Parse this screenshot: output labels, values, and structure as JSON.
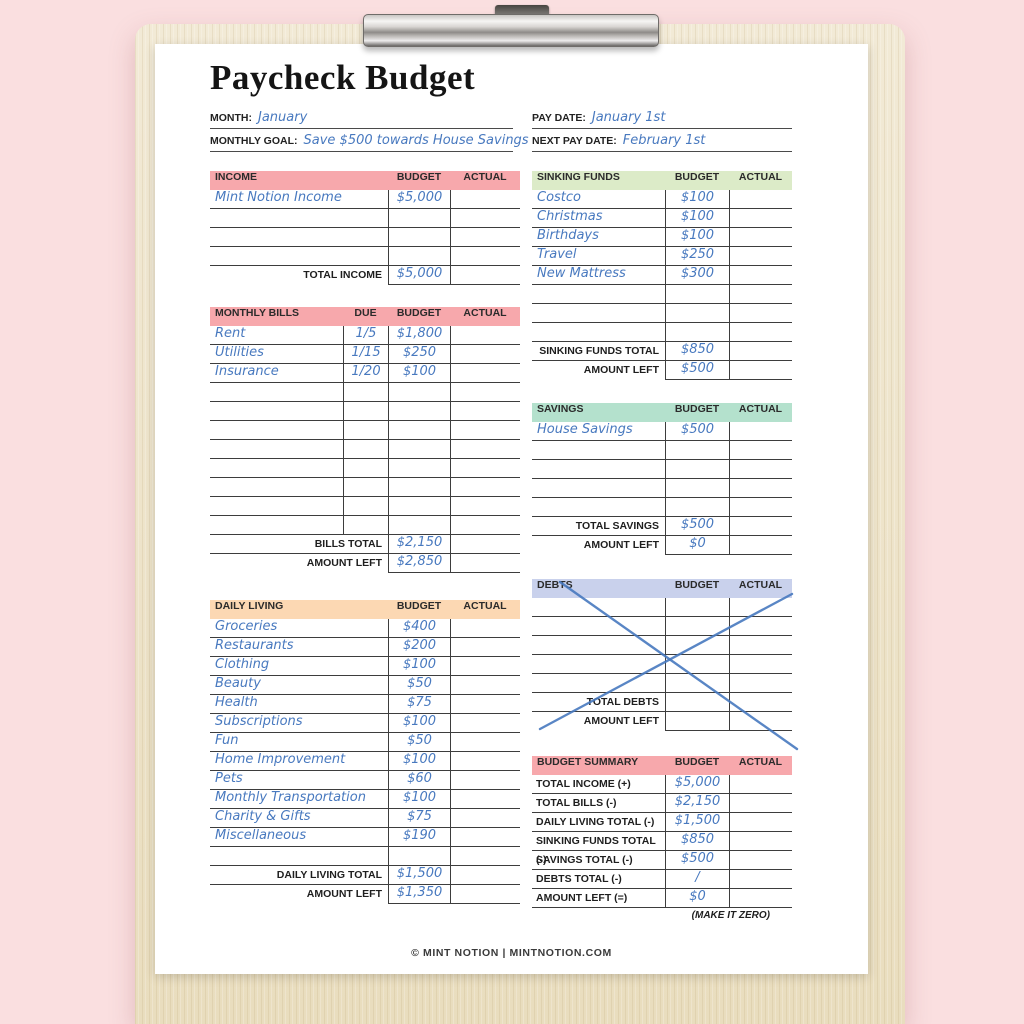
{
  "page": {
    "title": "Paycheck Budget",
    "footer": "© MINT NOTION | MINTNOTION.COM",
    "make_it_zero_note": "(MAKE IT ZERO)"
  },
  "ink_color": "#4879bf",
  "meta": {
    "month": {
      "label": "MONTH:",
      "value": "January"
    },
    "monthly_goal": {
      "label": "MONTHLY GOAL:",
      "value": "Save $500 towards House Savings"
    },
    "pay_date": {
      "label": "PAY DATE:",
      "value": "January 1st"
    },
    "next_pay_date": {
      "label": "NEXT PAY DATE:",
      "value": "February 1st"
    }
  },
  "sections": {
    "income": {
      "title": "INCOME",
      "header_color": "#f7a8ac",
      "columns": {
        "budget": "BUDGET",
        "actual": "ACTUAL"
      },
      "rows": [
        {
          "name": "Mint Notion Income",
          "budget": "$5,000",
          "actual": ""
        },
        {
          "name": "",
          "budget": "",
          "actual": ""
        },
        {
          "name": "",
          "budget": "",
          "actual": ""
        },
        {
          "name": "",
          "budget": "",
          "actual": ""
        }
      ],
      "totals": [
        {
          "label": "TOTAL INCOME",
          "budget": "$5,000",
          "actual": ""
        }
      ]
    },
    "monthly_bills": {
      "title": "MONTHLY BILLS",
      "header_color": "#f7a8ac",
      "columns": {
        "due": "DUE",
        "budget": "BUDGET",
        "actual": "ACTUAL"
      },
      "rows": [
        {
          "name": "Rent",
          "due": "1/5",
          "budget": "$1,800",
          "actual": ""
        },
        {
          "name": "Utilities",
          "due": "1/15",
          "budget": "$250",
          "actual": ""
        },
        {
          "name": "Insurance",
          "due": "1/20",
          "budget": "$100",
          "actual": ""
        },
        {
          "name": "",
          "due": "",
          "budget": "",
          "actual": ""
        },
        {
          "name": "",
          "due": "",
          "budget": "",
          "actual": ""
        },
        {
          "name": "",
          "due": "",
          "budget": "",
          "actual": ""
        },
        {
          "name": "",
          "due": "",
          "budget": "",
          "actual": ""
        },
        {
          "name": "",
          "due": "",
          "budget": "",
          "actual": ""
        },
        {
          "name": "",
          "due": "",
          "budget": "",
          "actual": ""
        },
        {
          "name": "",
          "due": "",
          "budget": "",
          "actual": ""
        },
        {
          "name": "",
          "due": "",
          "budget": "",
          "actual": ""
        }
      ],
      "totals": [
        {
          "label": "BILLS TOTAL",
          "budget": "$2,150",
          "actual": ""
        },
        {
          "label": "AMOUNT LEFT",
          "budget": "$2,850",
          "actual": ""
        }
      ]
    },
    "daily_living": {
      "title": "DAILY LIVING",
      "header_color": "#fcd8b3",
      "columns": {
        "budget": "BUDGET",
        "actual": "ACTUAL"
      },
      "rows": [
        {
          "name": "Groceries",
          "budget": "$400",
          "actual": ""
        },
        {
          "name": "Restaurants",
          "budget": "$200",
          "actual": ""
        },
        {
          "name": "Clothing",
          "budget": "$100",
          "actual": ""
        },
        {
          "name": "Beauty",
          "budget": "$50",
          "actual": ""
        },
        {
          "name": "Health",
          "budget": "$75",
          "actual": ""
        },
        {
          "name": "Subscriptions",
          "budget": "$100",
          "actual": ""
        },
        {
          "name": "Fun",
          "budget": "$50",
          "actual": ""
        },
        {
          "name": "Home Improvement",
          "budget": "$100",
          "actual": ""
        },
        {
          "name": "Pets",
          "budget": "$60",
          "actual": ""
        },
        {
          "name": "Monthly Transportation",
          "budget": "$100",
          "actual": ""
        },
        {
          "name": "Charity & Gifts",
          "budget": "$75",
          "actual": ""
        },
        {
          "name": "Miscellaneous",
          "budget": "$190",
          "actual": ""
        },
        {
          "name": "",
          "budget": "",
          "actual": ""
        }
      ],
      "totals": [
        {
          "label": "DAILY LIVING TOTAL",
          "budget": "$1,500",
          "actual": ""
        },
        {
          "label": "AMOUNT LEFT",
          "budget": "$1,350",
          "actual": ""
        }
      ]
    },
    "sinking_funds": {
      "title": "SINKING FUNDS",
      "header_color": "#dcebc8",
      "columns": {
        "budget": "BUDGET",
        "actual": "ACTUAL"
      },
      "rows": [
        {
          "name": "Costco",
          "budget": "$100",
          "actual": ""
        },
        {
          "name": "Christmas",
          "budget": "$100",
          "actual": ""
        },
        {
          "name": "Birthdays",
          "budget": "$100",
          "actual": ""
        },
        {
          "name": "Travel",
          "budget": "$250",
          "actual": ""
        },
        {
          "name": "New Mattress",
          "budget": "$300",
          "actual": ""
        },
        {
          "name": "",
          "budget": "",
          "actual": ""
        },
        {
          "name": "",
          "budget": "",
          "actual": ""
        },
        {
          "name": "",
          "budget": "",
          "actual": ""
        }
      ],
      "totals": [
        {
          "label": "SINKING FUNDS TOTAL",
          "budget": "$850",
          "actual": ""
        },
        {
          "label": "AMOUNT LEFT",
          "budget": "$500",
          "actual": ""
        }
      ]
    },
    "savings": {
      "title": "SAVINGS",
      "header_color": "#b4e1cd",
      "columns": {
        "budget": "BUDGET",
        "actual": "ACTUAL"
      },
      "rows": [
        {
          "name": "House Savings",
          "budget": "$500",
          "actual": ""
        },
        {
          "name": "",
          "budget": "",
          "actual": ""
        },
        {
          "name": "",
          "budget": "",
          "actual": ""
        },
        {
          "name": "",
          "budget": "",
          "actual": ""
        },
        {
          "name": "",
          "budget": "",
          "actual": ""
        }
      ],
      "totals": [
        {
          "label": "TOTAL SAVINGS",
          "budget": "$500",
          "actual": ""
        },
        {
          "label": "AMOUNT LEFT",
          "budget": "$0",
          "actual": ""
        }
      ]
    },
    "debts": {
      "title": "DEBTS",
      "header_color": "#c9d1ec",
      "crossed_out": true,
      "columns": {
        "budget": "BUDGET",
        "actual": "ACTUAL"
      },
      "rows": [
        {
          "name": "",
          "budget": "",
          "actual": ""
        },
        {
          "name": "",
          "budget": "",
          "actual": ""
        },
        {
          "name": "",
          "budget": "",
          "actual": ""
        },
        {
          "name": "",
          "budget": "",
          "actual": ""
        },
        {
          "name": "",
          "budget": "",
          "actual": ""
        }
      ],
      "totals": [
        {
          "label": "TOTAL DEBTS",
          "budget": "",
          "actual": ""
        },
        {
          "label": "AMOUNT LEFT",
          "budget": "",
          "actual": ""
        }
      ]
    },
    "budget_summary": {
      "title": "BUDGET SUMMARY",
      "header_color": "#f7a8ac",
      "columns": {
        "budget": "BUDGET",
        "actual": "ACTUAL"
      },
      "rows": [],
      "totals": [
        {
          "label": "TOTAL INCOME (+)",
          "budget": "$5,000",
          "actual": ""
        },
        {
          "label": "TOTAL BILLS (-)",
          "budget": "$2,150",
          "actual": ""
        },
        {
          "label": "DAILY LIVING TOTAL (-)",
          "budget": "$1,500",
          "actual": ""
        },
        {
          "label": "SINKING FUNDS TOTAL (-)",
          "budget": "$850",
          "actual": ""
        },
        {
          "label": "SAVINGS TOTAL (-)",
          "budget": "$500",
          "actual": ""
        },
        {
          "label": "DEBTS TOTAL (-)",
          "budget": "/",
          "actual": ""
        },
        {
          "label": "AMOUNT LEFT (=)",
          "budget": "$0",
          "actual": ""
        }
      ]
    }
  }
}
